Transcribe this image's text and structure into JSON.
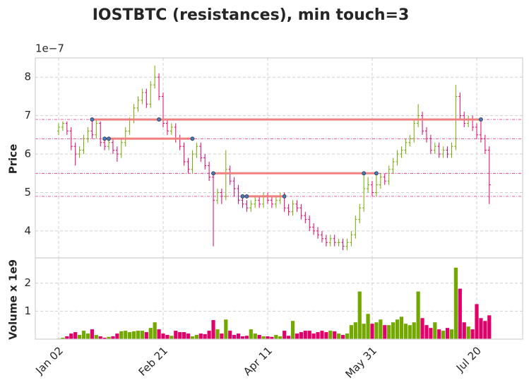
{
  "chart_data": {
    "type": "ohlc",
    "title": "IOSTBTC (resistances), min touch=3",
    "price_offset": "1e−7",
    "ylabel": "Price",
    "volume_label": "Volume x 1e9",
    "up_color": "#73a800",
    "down_color": "#e0006b",
    "resistance_color": "#f08080",
    "touch_color": "#4a7ab5",
    "grid": true,
    "categories": [
      "Jan 02",
      "Jan 04",
      "Jan 06",
      "Jan 08",
      "Jan 10",
      "Jan 12",
      "Jan 14",
      "Jan 16",
      "Jan 18",
      "Jan 20",
      "Jan 22",
      "Jan 24",
      "Jan 26",
      "Jan 28",
      "Jan 30",
      "Feb 01",
      "Feb 03",
      "Feb 05",
      "Feb 07",
      "Feb 09",
      "Feb 11",
      "Feb 13",
      "Feb 15",
      "Feb 17",
      "Feb 19",
      "Feb 21",
      "Feb 23",
      "Feb 25",
      "Feb 27",
      "Feb 29",
      "Mar 02",
      "Mar 04",
      "Mar 06",
      "Mar 08",
      "Mar 10",
      "Mar 12",
      "Mar 14",
      "Mar 16",
      "Mar 18",
      "Mar 20",
      "Mar 22",
      "Mar 24",
      "Mar 26",
      "Mar 28",
      "Mar 30",
      "Apr 01",
      "Apr 03",
      "Apr 05",
      "Apr 07",
      "Apr 09",
      "Apr 11",
      "Apr 13",
      "Apr 15",
      "Apr 17",
      "Apr 19",
      "Apr 21",
      "Apr 23",
      "Apr 25",
      "Apr 27",
      "Apr 29",
      "May 01",
      "May 03",
      "May 05",
      "May 07",
      "May 09",
      "May 11",
      "May 13",
      "May 15",
      "May 17",
      "May 19",
      "May 21",
      "May 23",
      "May 25",
      "May 27",
      "May 29",
      "May 31",
      "Jun 02",
      "Jun 04",
      "Jun 06",
      "Jun 08",
      "Jun 10",
      "Jun 12",
      "Jun 14",
      "Jun 16",
      "Jun 18",
      "Jun 20",
      "Jun 22",
      "Jun 24",
      "Jun 26",
      "Jun 28",
      "Jun 30",
      "Jul 02",
      "Jul 04",
      "Jul 06",
      "Jul 08",
      "Jul 10",
      "Jul 12",
      "Jul 14",
      "Jul 16",
      "Jul 18",
      "Jul 20",
      "Jul 22",
      "Jul 24",
      "Jul 26"
    ],
    "open": [
      6.6,
      6.7,
      6.8,
      6.6,
      6.2,
      6.0,
      6.1,
      6.4,
      6.6,
      6.5,
      6.8,
      6.3,
      6.2,
      6.3,
      6.1,
      6.0,
      6.3,
      6.6,
      6.9,
      7.2,
      7.4,
      7.6,
      7.3,
      7.8,
      8.0,
      7.5,
      6.8,
      6.6,
      6.7,
      6.4,
      6.2,
      5.8,
      5.6,
      6.0,
      6.2,
      5.9,
      5.7,
      5.4,
      4.8,
      5.0,
      4.9,
      5.6,
      5.3,
      5.1,
      4.8,
      4.7,
      4.6,
      4.7,
      4.8,
      4.7,
      4.9,
      4.8,
      4.7,
      4.8,
      4.9,
      4.6,
      4.5,
      4.7,
      4.6,
      4.4,
      4.3,
      4.1,
      4.0,
      3.9,
      3.8,
      3.7,
      3.8,
      3.7,
      3.7,
      3.6,
      3.7,
      3.9,
      4.3,
      4.6,
      5.1,
      5.2,
      5.0,
      5.2,
      5.4,
      5.3,
      5.6,
      5.8,
      6.0,
      6.1,
      6.3,
      6.4,
      6.8,
      7.0,
      6.6,
      6.4,
      6.1,
      6.2,
      6.0,
      6.1,
      6.0,
      6.2,
      7.5,
      7.0,
      6.8,
      6.9,
      6.7,
      6.5,
      6.4,
      6.1
    ],
    "high": [
      6.8,
      6.85,
      6.85,
      6.7,
      6.3,
      6.2,
      6.5,
      6.7,
      6.9,
      6.9,
      6.85,
      6.4,
      6.4,
      6.4,
      6.2,
      6.4,
      6.7,
      6.95,
      7.3,
      7.5,
      7.7,
      7.7,
      7.9,
      8.3,
      8.1,
      7.6,
      6.9,
      6.8,
      6.8,
      6.5,
      6.3,
      5.9,
      6.1,
      6.3,
      6.3,
      6.0,
      5.8,
      5.5,
      5.1,
      5.1,
      6.1,
      5.7,
      5.4,
      5.2,
      4.9,
      4.8,
      4.8,
      4.9,
      4.9,
      5.0,
      5.0,
      4.9,
      4.9,
      5.0,
      5.0,
      4.7,
      4.8,
      4.8,
      4.7,
      4.5,
      4.4,
      4.2,
      4.1,
      4.0,
      3.9,
      3.9,
      3.9,
      3.8,
      3.8,
      3.8,
      4.0,
      4.4,
      4.7,
      5.5,
      5.4,
      5.3,
      5.5,
      5.5,
      5.5,
      5.7,
      5.9,
      6.1,
      6.2,
      6.4,
      6.5,
      6.9,
      7.3,
      7.1,
      6.7,
      6.5,
      6.3,
      6.3,
      6.2,
      6.2,
      6.3,
      7.8,
      7.6,
      7.1,
      7.0,
      7.0,
      6.8,
      6.9,
      6.5,
      6.2
    ],
    "low": [
      6.5,
      6.6,
      6.5,
      6.1,
      5.7,
      5.9,
      6.0,
      6.3,
      6.4,
      6.4,
      6.2,
      6.1,
      6.1,
      6.0,
      5.8,
      5.9,
      6.2,
      6.5,
      6.8,
      7.1,
      7.3,
      7.2,
      7.2,
      7.7,
      7.4,
      6.7,
      6.5,
      6.5,
      6.3,
      6.1,
      5.7,
      5.5,
      5.5,
      5.9,
      5.8,
      5.6,
      5.3,
      3.6,
      4.7,
      4.7,
      4.8,
      5.2,
      4.9,
      4.7,
      4.6,
      4.5,
      4.5,
      4.6,
      4.6,
      4.6,
      4.7,
      4.6,
      4.6,
      4.7,
      4.5,
      4.4,
      4.4,
      4.5,
      4.3,
      4.2,
      4.0,
      3.9,
      3.8,
      3.7,
      3.6,
      3.6,
      3.6,
      3.6,
      3.5,
      3.5,
      3.6,
      3.8,
      4.2,
      4.5,
      5.0,
      4.9,
      4.9,
      5.1,
      5.2,
      5.2,
      5.5,
      5.7,
      5.9,
      6.0,
      6.2,
      6.3,
      6.7,
      6.5,
      6.3,
      6.0,
      6.0,
      5.9,
      5.9,
      5.9,
      5.9,
      6.1,
      6.9,
      6.7,
      6.7,
      6.6,
      6.4,
      6.3,
      6.0,
      4.7
    ],
    "close": [
      6.7,
      6.8,
      6.6,
      6.2,
      6.0,
      6.1,
      6.4,
      6.6,
      6.5,
      6.8,
      6.3,
      6.2,
      6.3,
      6.1,
      6.0,
      6.3,
      6.6,
      6.9,
      7.2,
      7.4,
      7.6,
      7.3,
      7.8,
      8.0,
      7.5,
      6.8,
      6.6,
      6.7,
      6.4,
      6.2,
      5.8,
      5.6,
      6.0,
      6.2,
      5.9,
      5.7,
      5.4,
      4.8,
      5.0,
      4.9,
      5.6,
      5.3,
      5.1,
      4.8,
      4.7,
      4.6,
      4.7,
      4.8,
      4.7,
      4.9,
      4.8,
      4.7,
      4.8,
      4.9,
      4.6,
      4.5,
      4.7,
      4.6,
      4.4,
      4.3,
      4.1,
      4.0,
      3.9,
      3.8,
      3.7,
      3.8,
      3.7,
      3.7,
      3.6,
      3.7,
      3.9,
      4.3,
      4.6,
      5.1,
      5.2,
      5.0,
      5.2,
      5.4,
      5.3,
      5.6,
      5.8,
      6.0,
      6.1,
      6.3,
      6.4,
      6.8,
      7.0,
      6.6,
      6.4,
      6.1,
      6.2,
      6.0,
      6.1,
      6.0,
      6.2,
      7.5,
      7.0,
      6.8,
      6.9,
      6.7,
      6.5,
      6.4,
      6.1,
      5.2
    ],
    "volume": [
      0.02,
      0.05,
      0.1,
      0.2,
      0.25,
      0.15,
      0.3,
      0.2,
      0.35,
      0.15,
      0.1,
      0.05,
      0.08,
      0.1,
      0.2,
      0.28,
      0.3,
      0.25,
      0.28,
      0.3,
      0.3,
      0.25,
      0.4,
      0.6,
      0.35,
      0.2,
      0.15,
      0.12,
      0.3,
      0.25,
      0.25,
      0.2,
      0.1,
      0.15,
      0.2,
      0.18,
      0.3,
      0.68,
      0.35,
      0.2,
      0.7,
      0.3,
      0.15,
      0.2,
      0.1,
      0.12,
      0.35,
      0.2,
      0.15,
      0.1,
      0.1,
      0.08,
      0.15,
      0.1,
      0.3,
      0.12,
      0.65,
      0.2,
      0.25,
      0.3,
      0.3,
      0.2,
      0.25,
      0.3,
      0.25,
      0.3,
      0.28,
      0.2,
      0.15,
      0.2,
      0.5,
      0.6,
      1.7,
      0.55,
      0.9,
      0.55,
      0.6,
      0.7,
      0.5,
      0.5,
      0.6,
      0.7,
      0.8,
      0.55,
      0.5,
      0.6,
      1.7,
      0.75,
      0.5,
      0.4,
      0.6,
      0.35,
      0.3,
      0.4,
      0.35,
      2.55,
      1.8,
      0.6,
      0.45,
      0.35,
      1.25,
      0.75,
      0.65,
      0.85
    ],
    "resistances": [
      {
        "level": 6.9,
        "touches": [
          "Jan 18",
          "Feb 19",
          "Jul 22"
        ]
      },
      {
        "level": 6.4,
        "touches": [
          "Jan 24",
          "Jan 26",
          "Mar 06"
        ]
      },
      {
        "level": 5.5,
        "touches": [
          "Mar 16",
          "May 27",
          "Jun 02"
        ]
      },
      {
        "level": 4.9,
        "touches": [
          "Mar 30",
          "Apr 01",
          "Apr 19"
        ]
      }
    ],
    "xticks": [
      "Jan 02",
      "Feb 21",
      "Apr 11",
      "May 31",
      "Jul 20"
    ],
    "ylim": [
      3.3,
      8.5
    ],
    "yticks": [
      4,
      5,
      6,
      7,
      8
    ],
    "volume_ylim": [
      0,
      2.9
    ],
    "volume_yticks": [
      1,
      2
    ]
  }
}
